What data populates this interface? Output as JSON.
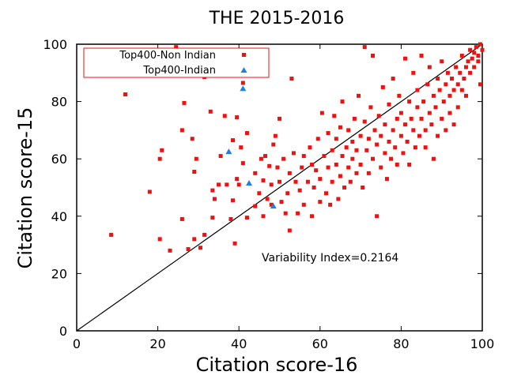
{
  "chart_data": {
    "type": "scatter",
    "title": "THE 2015-2016",
    "xlabel": "Citation score-16",
    "ylabel": "Citation score-15",
    "xlim": [
      0,
      100
    ],
    "ylim": [
      0,
      100
    ],
    "xticks": [
      "0",
      "20",
      "40",
      "60",
      "80",
      "100"
    ],
    "yticks": [
      "0",
      "20",
      "40",
      "60",
      "80",
      "100"
    ],
    "grid": false,
    "legend_position": "top-left",
    "annotation": "Variability Index=0.2164",
    "reference_line": {
      "from": [
        0,
        0
      ],
      "to": [
        100,
        100
      ]
    },
    "series": [
      {
        "name": "Top400-Non Indian",
        "marker": "square",
        "color": "#ee1111",
        "points": [
          [
            8.5,
            33.5
          ],
          [
            12,
            82.5
          ],
          [
            18,
            48.5
          ],
          [
            20.5,
            32
          ],
          [
            21,
            63
          ],
          [
            20.5,
            60
          ],
          [
            23,
            28
          ],
          [
            24.5,
            99
          ],
          [
            26,
            70
          ],
          [
            26.5,
            79.5
          ],
          [
            26,
            39
          ],
          [
            27.5,
            28.5
          ],
          [
            28.5,
            67
          ],
          [
            29,
            55.5
          ],
          [
            29.5,
            60
          ],
          [
            29,
            32
          ],
          [
            30,
            92
          ],
          [
            30.5,
            29
          ],
          [
            31.5,
            88.5
          ],
          [
            31.5,
            33.5
          ],
          [
            33.5,
            49
          ],
          [
            33.5,
            39.5
          ],
          [
            34,
            46
          ],
          [
            33,
            76.5
          ],
          [
            35,
            51
          ],
          [
            35.5,
            61
          ],
          [
            36.5,
            75
          ],
          [
            37,
            51
          ],
          [
            38.5,
            45.5
          ],
          [
            38.5,
            66.5
          ],
          [
            38,
            39
          ],
          [
            39,
            30.5
          ],
          [
            39.5,
            53
          ],
          [
            39.5,
            74.5
          ],
          [
            40,
            51
          ],
          [
            40.5,
            64
          ],
          [
            41,
            58.5
          ],
          [
            41,
            86.5
          ],
          [
            42,
            69
          ],
          [
            42,
            39.5
          ],
          [
            44,
            43.5
          ],
          [
            44,
            55
          ],
          [
            45,
            48
          ],
          [
            45.5,
            60
          ],
          [
            46,
            52.5
          ],
          [
            46,
            40
          ],
          [
            46.5,
            61
          ],
          [
            47,
            46
          ],
          [
            47.5,
            57.5
          ],
          [
            48,
            51
          ],
          [
            48,
            44
          ],
          [
            48.5,
            65
          ],
          [
            49,
            68
          ],
          [
            49.5,
            57
          ],
          [
            50,
            52
          ],
          [
            50,
            74
          ],
          [
            50.5,
            45
          ],
          [
            51,
            60
          ],
          [
            51.5,
            41
          ],
          [
            52,
            48
          ],
          [
            52.5,
            35
          ],
          [
            52.5,
            55
          ],
          [
            53,
            88
          ],
          [
            53.5,
            62
          ],
          [
            54,
            52
          ],
          [
            54.5,
            41
          ],
          [
            55,
            49
          ],
          [
            55.5,
            57
          ],
          [
            56,
            61
          ],
          [
            56,
            44
          ],
          [
            57,
            52
          ],
          [
            57.5,
            64
          ],
          [
            58,
            58
          ],
          [
            58,
            40
          ],
          [
            58.5,
            50
          ],
          [
            59,
            56
          ],
          [
            59.5,
            67
          ],
          [
            60,
            45
          ],
          [
            60,
            53
          ],
          [
            60.5,
            76
          ],
          [
            61,
            61
          ],
          [
            61.5,
            48
          ],
          [
            62,
            57
          ],
          [
            62,
            69
          ],
          [
            62.5,
            44
          ],
          [
            63,
            63
          ],
          [
            63,
            52
          ],
          [
            63.5,
            75
          ],
          [
            64,
            58
          ],
          [
            64,
            67
          ],
          [
            64.5,
            46
          ],
          [
            65,
            71
          ],
          [
            65,
            54
          ],
          [
            65.5,
            61
          ],
          [
            65.5,
            80
          ],
          [
            66,
            50
          ],
          [
            66.5,
            64
          ],
          [
            67,
            57
          ],
          [
            67,
            70
          ],
          [
            67.5,
            52
          ],
          [
            68,
            66
          ],
          [
            68,
            60
          ],
          [
            68.5,
            74
          ],
          [
            69,
            55
          ],
          [
            69,
            63
          ],
          [
            69.5,
            82
          ],
          [
            70,
            58
          ],
          [
            70,
            68
          ],
          [
            70.5,
            50
          ],
          [
            71,
            99
          ],
          [
            71,
            73
          ],
          [
            71.5,
            63
          ],
          [
            72,
            55
          ],
          [
            72,
            67
          ],
          [
            72.5,
            78
          ],
          [
            73,
            96
          ],
          [
            73,
            60
          ],
          [
            73.5,
            70
          ],
          [
            74,
            65
          ],
          [
            74,
            40
          ],
          [
            74.5,
            75
          ],
          [
            75,
            57
          ],
          [
            75,
            68
          ],
          [
            75.5,
            85
          ],
          [
            76,
            62
          ],
          [
            76,
            72
          ],
          [
            76.5,
            53
          ],
          [
            77,
            66
          ],
          [
            77,
            79
          ],
          [
            77.5,
            60
          ],
          [
            78,
            70
          ],
          [
            78,
            88
          ],
          [
            78.5,
            64
          ],
          [
            79,
            74
          ],
          [
            79,
            58
          ],
          [
            79.5,
            82
          ],
          [
            80,
            68
          ],
          [
            80,
            76
          ],
          [
            80.5,
            62
          ],
          [
            81,
            72
          ],
          [
            81,
            95
          ],
          [
            81.5,
            66
          ],
          [
            82,
            80
          ],
          [
            82,
            58
          ],
          [
            82.5,
            74
          ],
          [
            83,
            70
          ],
          [
            83,
            90
          ],
          [
            83.5,
            64
          ],
          [
            84,
            78
          ],
          [
            84,
            84
          ],
          [
            84.5,
            68
          ],
          [
            85,
            74
          ],
          [
            85,
            96
          ],
          [
            85.5,
            80
          ],
          [
            86,
            70
          ],
          [
            86,
            64
          ],
          [
            86.5,
            86
          ],
          [
            87,
            76
          ],
          [
            87,
            92
          ],
          [
            87.5,
            72
          ],
          [
            88,
            82
          ],
          [
            88,
            60
          ],
          [
            88.5,
            78
          ],
          [
            89,
            88
          ],
          [
            89,
            68
          ],
          [
            89.5,
            84
          ],
          [
            90,
            74
          ],
          [
            90,
            94
          ],
          [
            90.5,
            80
          ],
          [
            91,
            86
          ],
          [
            91,
            70
          ],
          [
            91.5,
            90
          ],
          [
            92,
            82
          ],
          [
            92,
            76
          ],
          [
            92.5,
            88
          ],
          [
            93,
            84
          ],
          [
            93,
            72
          ],
          [
            93.5,
            92
          ],
          [
            94,
            86
          ],
          [
            94,
            78
          ],
          [
            94.5,
            90
          ],
          [
            95,
            84
          ],
          [
            95,
            96
          ],
          [
            95.5,
            88
          ],
          [
            96,
            92
          ],
          [
            96,
            82
          ],
          [
            96.5,
            94
          ],
          [
            97,
            90
          ],
          [
            97,
            98
          ],
          [
            97.5,
            95
          ],
          [
            98,
            97
          ],
          [
            98,
            92
          ],
          [
            98.5,
            99
          ],
          [
            99,
            96
          ],
          [
            99,
            94
          ],
          [
            99.5,
            100
          ],
          [
            99.5,
            86
          ],
          [
            100,
            98
          ]
        ]
      },
      {
        "name": "Top400-Indian",
        "marker": "triangle",
        "color": "#1e7fe0",
        "points": [
          [
            37.5,
            62.5
          ],
          [
            41,
            84.5
          ],
          [
            42.5,
            51.5
          ],
          [
            48.5,
            43.5
          ]
        ]
      }
    ]
  }
}
